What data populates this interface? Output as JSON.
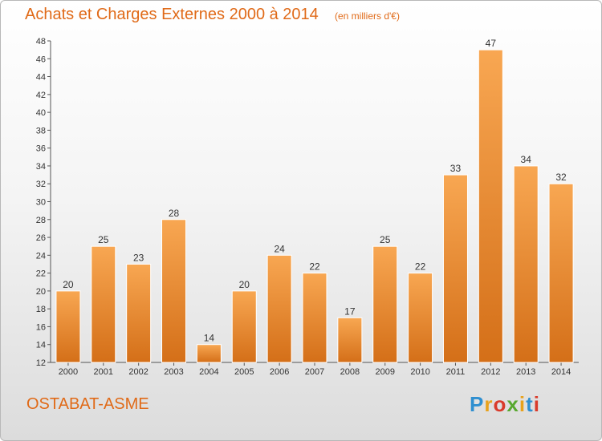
{
  "chart_data": {
    "type": "bar",
    "title": "Achats et Charges Externes 2000 à 2014",
    "subtitle": "(en milliers d'€)",
    "categories": [
      "2000",
      "2001",
      "2002",
      "2003",
      "2004",
      "2005",
      "2006",
      "2007",
      "2008",
      "2009",
      "2010",
      "2011",
      "2012",
      "2013",
      "2014"
    ],
    "values": [
      20,
      25,
      23,
      28,
      14,
      20,
      24,
      22,
      17,
      25,
      22,
      33,
      47,
      34,
      32
    ],
    "ylim": [
      12,
      48
    ],
    "yticks": [
      12,
      14,
      16,
      18,
      20,
      22,
      24,
      26,
      28,
      30,
      32,
      34,
      36,
      38,
      40,
      42,
      44,
      46,
      48
    ],
    "grid": false,
    "bar_color": "#f0923a"
  },
  "footer": {
    "town": "OSTABAT-ASME",
    "logo": "Proxiti"
  }
}
